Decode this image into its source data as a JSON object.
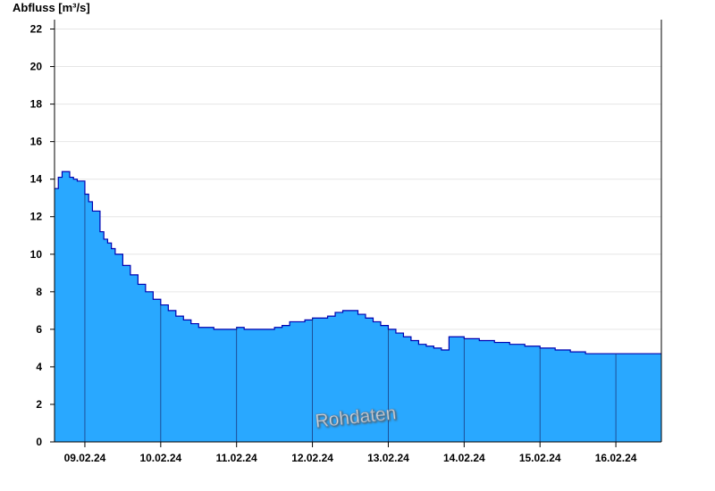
{
  "chart_data": {
    "type": "area",
    "ylabel": "Abfluss [m³/s]",
    "watermark": "Rohdaten",
    "ylim": [
      0,
      22.5
    ],
    "yticks": [
      0,
      2,
      4,
      6,
      8,
      10,
      12,
      14,
      16,
      18,
      20,
      22
    ],
    "x_range_days": [
      8.6,
      16.6
    ],
    "date_labels": [
      "09.02.24",
      "10.02.24",
      "11.02.24",
      "12.02.24",
      "13.02.24",
      "14.02.24",
      "15.02.24",
      "16.02.24"
    ],
    "grid": true,
    "colors": {
      "fill": "#29a8ff",
      "line": "#0000b0",
      "axis": "#000000",
      "grid": "#e6e6e6"
    },
    "series": [
      {
        "x": [
          8.6,
          8.65,
          8.7,
          8.75,
          8.8,
          8.85,
          8.9,
          9.0,
          9.05,
          9.1,
          9.2,
          9.25,
          9.3,
          9.35,
          9.4,
          9.5,
          9.6,
          9.7,
          9.8,
          9.9,
          10.0,
          10.1,
          10.2,
          10.3,
          10.4,
          10.5,
          10.6,
          10.7,
          10.8,
          10.9,
          11.0,
          11.1,
          11.2,
          11.25,
          11.3,
          11.35,
          11.4,
          11.5,
          11.6,
          11.7,
          11.8,
          11.9,
          12.0,
          12.1,
          12.2,
          12.3,
          12.4,
          12.5,
          12.6,
          12.7,
          12.8,
          12.9,
          13.0,
          13.1,
          13.2,
          13.3,
          13.4,
          13.5,
          13.6,
          13.7,
          13.8,
          13.9,
          14.0,
          14.1,
          14.2,
          14.3,
          14.4,
          14.45,
          14.5,
          14.6,
          14.7,
          14.8,
          14.9,
          15.0,
          15.1,
          15.2,
          15.3,
          15.4,
          15.5,
          15.6,
          15.7,
          15.8,
          15.9,
          16.0,
          16.1,
          16.2,
          16.3,
          16.4,
          16.5,
          16.6
        ],
        "y": [
          13.5,
          14.1,
          14.4,
          14.4,
          14.1,
          14.0,
          13.9,
          13.2,
          12.8,
          12.3,
          11.2,
          10.8,
          10.6,
          10.3,
          10.0,
          9.4,
          8.9,
          8.4,
          8.0,
          7.6,
          7.3,
          7.0,
          6.7,
          6.5,
          6.3,
          6.1,
          6.1,
          6.0,
          6.0,
          6.0,
          6.1,
          6.0,
          6.0,
          6.0,
          6.0,
          6.0,
          6.0,
          6.1,
          6.2,
          6.4,
          6.4,
          6.5,
          6.6,
          6.6,
          6.7,
          6.9,
          7.0,
          7.0,
          6.8,
          6.6,
          6.4,
          6.2,
          6.0,
          5.8,
          5.6,
          5.4,
          5.2,
          5.1,
          5.0,
          4.9,
          5.6,
          5.6,
          5.5,
          5.5,
          5.4,
          5.4,
          5.3,
          5.3,
          5.3,
          5.2,
          5.2,
          5.1,
          5.1,
          5.0,
          5.0,
          4.9,
          4.9,
          4.8,
          4.8,
          4.7,
          4.7,
          4.7,
          4.7,
          4.7,
          4.7,
          4.7,
          4.7,
          4.7,
          4.7,
          4.7
        ]
      }
    ]
  }
}
